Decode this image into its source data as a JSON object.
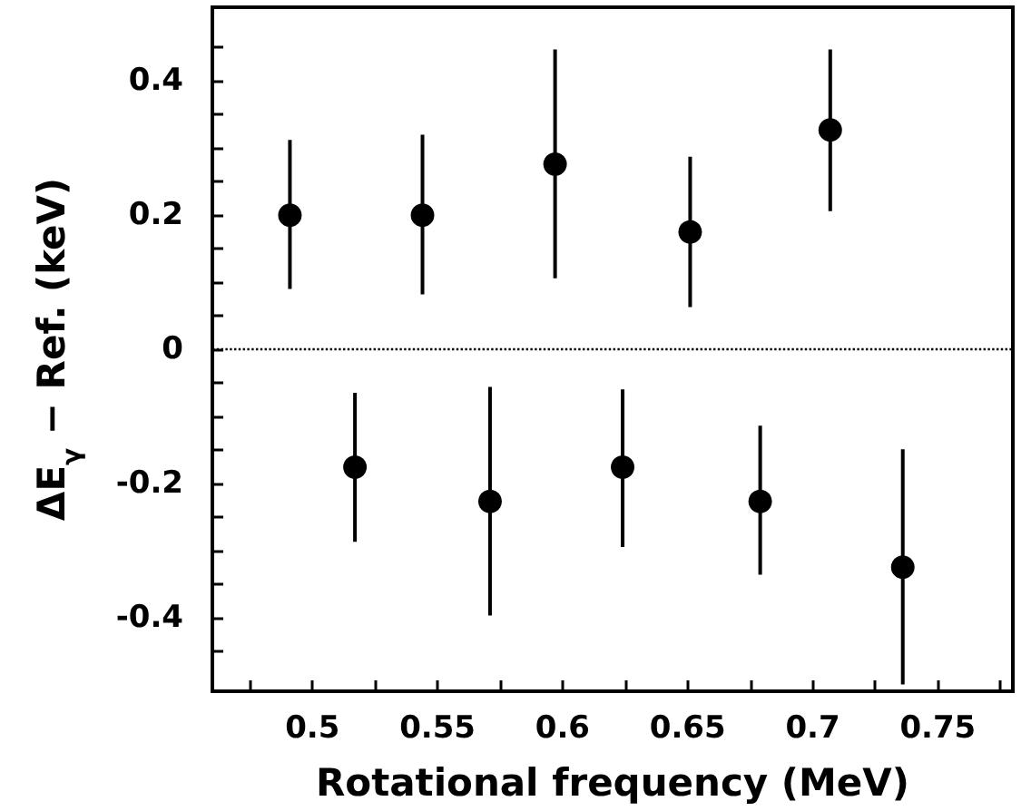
{
  "chart_data": {
    "type": "scatter",
    "xlabel": "Rotational frequency (MeV)",
    "ylabel": "ΔE$_{γ}$ − Ref. (keV)",
    "x": [
      0.491,
      0.517,
      0.544,
      0.571,
      0.597,
      0.624,
      0.651,
      0.679,
      0.707,
      0.736
    ],
    "values": [
      0.2,
      -0.176,
      0.2,
      -0.227,
      0.276,
      -0.176,
      0.175,
      -0.227,
      0.327,
      -0.325
    ],
    "errors": [
      [
        0.09,
        0.312
      ],
      [
        -0.287,
        -0.065
      ],
      [
        0.082,
        0.32
      ],
      [
        -0.397,
        -0.056
      ],
      [
        0.106,
        0.447
      ],
      [
        -0.295,
        -0.06
      ],
      [
        0.063,
        0.287
      ],
      [
        -0.336,
        -0.114
      ],
      [
        0.206,
        0.447
      ],
      [
        -0.5,
        -0.149
      ]
    ],
    "color": "#000000",
    "marker": "circle",
    "xlim": [
      0.46,
      0.78
    ],
    "xticks": [
      {
        "value": 0.475,
        "label": null
      },
      0.5,
      {
        "value": 0.525,
        "label": null
      },
      0.55,
      {
        "value": 0.575,
        "label": null
      },
      0.6,
      {
        "value": 0.625,
        "label": null
      },
      0.65,
      {
        "value": 0.675,
        "label": null
      },
      0.7,
      {
        "value": 0.725,
        "label": null
      },
      0.75,
      {
        "value": 0.775,
        "label": null
      }
    ],
    "ylim": [
      -0.51,
      0.51
    ],
    "yticks": [
      {
        "value": -0.45,
        "label": null
      },
      -0.4,
      {
        "value": -0.35,
        "label": null
      },
      {
        "value": -0.3,
        "label": null
      },
      {
        "value": -0.25,
        "label": null
      },
      -0.2,
      {
        "value": -0.15,
        "label": null
      },
      {
        "value": -0.1,
        "label": null
      },
      {
        "value": -0.05,
        "label": null
      },
      0,
      {
        "value": 0.05,
        "label": null
      },
      {
        "value": 0.1,
        "label": null
      },
      {
        "value": 0.15,
        "label": null
      },
      0.2,
      {
        "value": 0.25,
        "label": null
      },
      {
        "value": 0.3,
        "label": null
      },
      {
        "value": 0.35,
        "label": null
      },
      0.4,
      {
        "value": 0.45,
        "label": null
      }
    ],
    "ref_lines": [
      {
        "axis": "y",
        "value": 0,
        "line_style": "dotted",
        "color": "#000000"
      }
    ],
    "grid": false
  }
}
